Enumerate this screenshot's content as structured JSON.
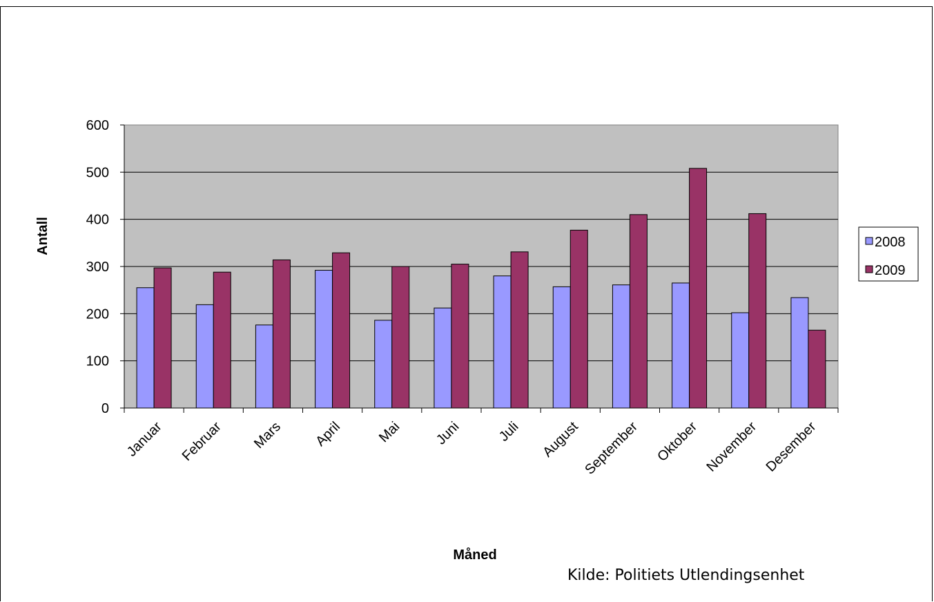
{
  "chart_data": {
    "type": "bar",
    "title": "",
    "xlabel": "Måned",
    "ylabel": "Antall",
    "ylim": [
      0,
      600
    ],
    "yticks": [
      0,
      100,
      200,
      300,
      400,
      500,
      600
    ],
    "grid": true,
    "legend_position": "right",
    "categories": [
      "Januar",
      "Februar",
      "Mars",
      "April",
      "Mai",
      "Juni",
      "Juli",
      "August",
      "September",
      "Oktober",
      "November",
      "Desember"
    ],
    "series": [
      {
        "name": "2008",
        "color": "#9999ff",
        "values": [
          255,
          219,
          176,
          292,
          186,
          212,
          280,
          257,
          261,
          265,
          202,
          234
        ]
      },
      {
        "name": "2009",
        "color": "#993366",
        "values": [
          297,
          288,
          314,
          329,
          300,
          305,
          331,
          377,
          410,
          508,
          412,
          165
        ]
      }
    ],
    "plot_background": "#c0c0c0",
    "source_note": "Kilde: Politiets Utlendingsenhet"
  }
}
